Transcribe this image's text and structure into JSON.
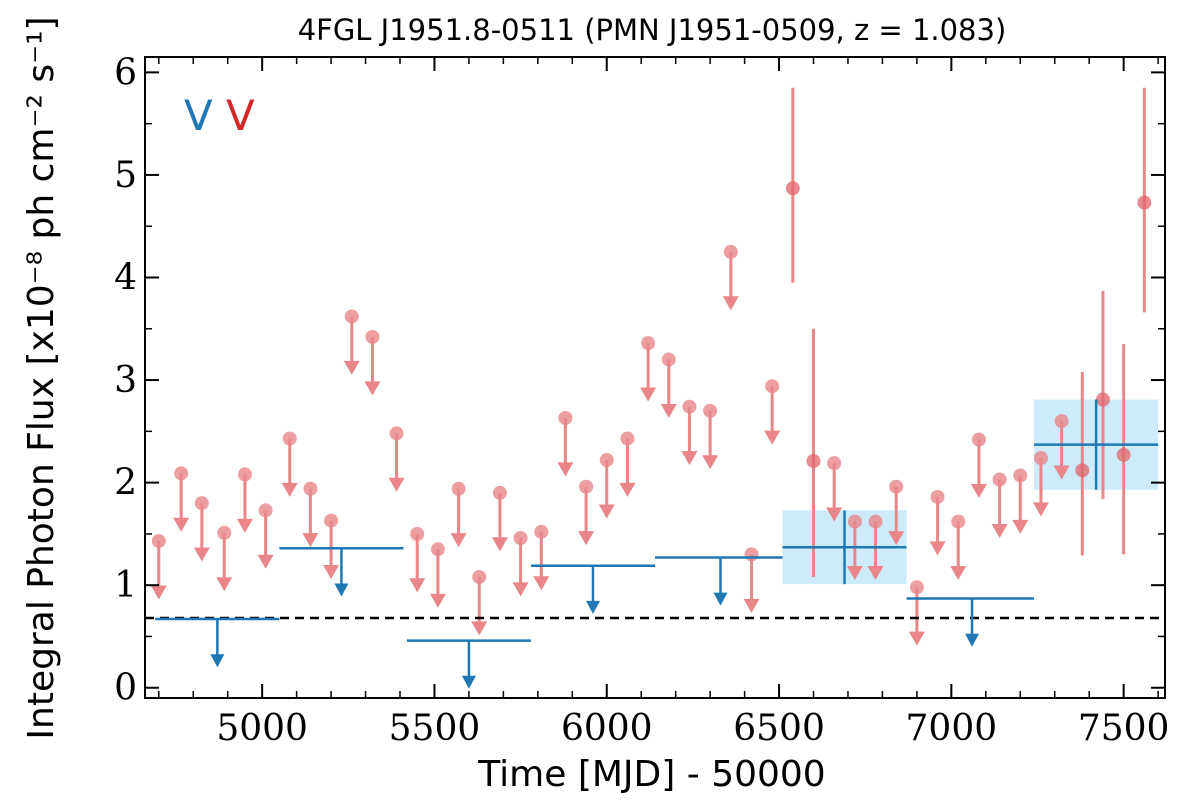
{
  "chart_data": {
    "type": "scatter",
    "title": "4FGL J1951.8-0511 (PMN J1951-0509, z = 1.083)",
    "xlabel": "Time [MJD] - 50000",
    "ylabel": "Integral Photon Flux [x10⁻⁸ ph cm⁻² s⁻¹]",
    "xlim": [
      4660,
      7620
    ],
    "ylim": [
      -0.1,
      6.15
    ],
    "xticks": [
      5000,
      5500,
      6000,
      6500,
      7000,
      7500
    ],
    "yticks": [
      0,
      1,
      2,
      3,
      4,
      5,
      6
    ],
    "legend": {
      "placement": "top-left",
      "markers": [
        "V",
        "V"
      ]
    },
    "colors": {
      "long_bins": "#1f77b4",
      "short_bins": "#e8868a",
      "detection_box": "#cdebfa",
      "baseline": "#000000"
    },
    "baseline_flux": 0.68,
    "long_bins": [
      {
        "x": 4870,
        "x_lo": 4690,
        "x_hi": 5050,
        "y": 0.67,
        "upper_limit": true
      },
      {
        "x": 5230,
        "x_lo": 5050,
        "x_hi": 5410,
        "y": 1.36,
        "upper_limit": true
      },
      {
        "x": 5600,
        "x_lo": 5420,
        "x_hi": 5780,
        "y": 0.46,
        "upper_limit": true
      },
      {
        "x": 5960,
        "x_lo": 5780,
        "x_hi": 6140,
        "y": 1.19,
        "upper_limit": true
      },
      {
        "x": 6330,
        "x_lo": 6140,
        "x_hi": 6510,
        "y": 1.27,
        "upper_limit": true
      },
      {
        "x": 6690,
        "x_lo": 6510,
        "x_hi": 6870,
        "y": 1.37,
        "upper_limit": false,
        "yerr": 0.36
      },
      {
        "x": 7060,
        "x_lo": 6870,
        "x_hi": 7240,
        "y": 0.87,
        "upper_limit": true
      },
      {
        "x": 7420,
        "x_lo": 7240,
        "x_hi": 7600,
        "y": 2.37,
        "upper_limit": false,
        "yerr": 0.44
      }
    ],
    "short_bins": [
      {
        "x": 4700,
        "y": 1.43,
        "upper_limit": true
      },
      {
        "x": 4765,
        "y": 2.09,
        "upper_limit": true
      },
      {
        "x": 4825,
        "y": 1.8,
        "upper_limit": true
      },
      {
        "x": 4890,
        "y": 1.51,
        "upper_limit": true
      },
      {
        "x": 4950,
        "y": 2.08,
        "upper_limit": true
      },
      {
        "x": 5010,
        "y": 1.73,
        "upper_limit": true
      },
      {
        "x": 5080,
        "y": 2.43,
        "upper_limit": true
      },
      {
        "x": 5140,
        "y": 1.94,
        "upper_limit": true
      },
      {
        "x": 5200,
        "y": 1.63,
        "upper_limit": true
      },
      {
        "x": 5260,
        "y": 3.62,
        "upper_limit": true
      },
      {
        "x": 5320,
        "y": 3.42,
        "upper_limit": true
      },
      {
        "x": 5390,
        "y": 2.48,
        "upper_limit": true
      },
      {
        "x": 5450,
        "y": 1.5,
        "upper_limit": true
      },
      {
        "x": 5510,
        "y": 1.35,
        "upper_limit": true
      },
      {
        "x": 5570,
        "y": 1.94,
        "upper_limit": true
      },
      {
        "x": 5630,
        "y": 1.08,
        "upper_limit": true
      },
      {
        "x": 5690,
        "y": 1.9,
        "upper_limit": true
      },
      {
        "x": 5750,
        "y": 1.46,
        "upper_limit": true
      },
      {
        "x": 5810,
        "y": 1.52,
        "upper_limit": true
      },
      {
        "x": 5880,
        "y": 2.63,
        "upper_limit": true
      },
      {
        "x": 5940,
        "y": 1.96,
        "upper_limit": true
      },
      {
        "x": 6000,
        "y": 2.22,
        "upper_limit": true
      },
      {
        "x": 6060,
        "y": 2.43,
        "upper_limit": true
      },
      {
        "x": 6120,
        "y": 3.36,
        "upper_limit": true
      },
      {
        "x": 6180,
        "y": 3.2,
        "upper_limit": true
      },
      {
        "x": 6240,
        "y": 2.74,
        "upper_limit": true
      },
      {
        "x": 6300,
        "y": 2.7,
        "upper_limit": true
      },
      {
        "x": 6360,
        "y": 4.25,
        "upper_limit": true
      },
      {
        "x": 6420,
        "y": 1.3,
        "upper_limit": true
      },
      {
        "x": 6480,
        "y": 2.94,
        "upper_limit": true
      },
      {
        "x": 6540,
        "y": 4.87,
        "upper_limit": false,
        "yerr_lo": 0.92,
        "yerr_hi": 0.98
      },
      {
        "x": 6600,
        "y": 2.21,
        "upper_limit": false,
        "yerr_lo": 1.13,
        "yerr_hi": 1.29
      },
      {
        "x": 6660,
        "y": 2.19,
        "upper_limit": true
      },
      {
        "x": 6720,
        "y": 1.62,
        "upper_limit": true
      },
      {
        "x": 6780,
        "y": 1.62,
        "upper_limit": true
      },
      {
        "x": 6840,
        "y": 1.96,
        "upper_limit": true
      },
      {
        "x": 6900,
        "y": 0.98,
        "upper_limit": true
      },
      {
        "x": 6960,
        "y": 1.86,
        "upper_limit": true
      },
      {
        "x": 7020,
        "y": 1.62,
        "upper_limit": true
      },
      {
        "x": 7080,
        "y": 2.42,
        "upper_limit": true
      },
      {
        "x": 7140,
        "y": 2.03,
        "upper_limit": true
      },
      {
        "x": 7200,
        "y": 2.07,
        "upper_limit": true
      },
      {
        "x": 7260,
        "y": 2.24,
        "upper_limit": true
      },
      {
        "x": 7320,
        "y": 2.6,
        "upper_limit": true
      },
      {
        "x": 7380,
        "y": 2.12,
        "upper_limit": false,
        "yerr_lo": 0.83,
        "yerr_hi": 0.96
      },
      {
        "x": 7440,
        "y": 2.81,
        "upper_limit": false,
        "yerr_lo": 0.97,
        "yerr_hi": 1.06
      },
      {
        "x": 7500,
        "y": 2.27,
        "upper_limit": false,
        "yerr_lo": 0.97,
        "yerr_hi": 1.08
      },
      {
        "x": 7560,
        "y": 4.73,
        "upper_limit": false,
        "yerr_lo": 1.07,
        "yerr_hi": 1.12
      }
    ]
  }
}
